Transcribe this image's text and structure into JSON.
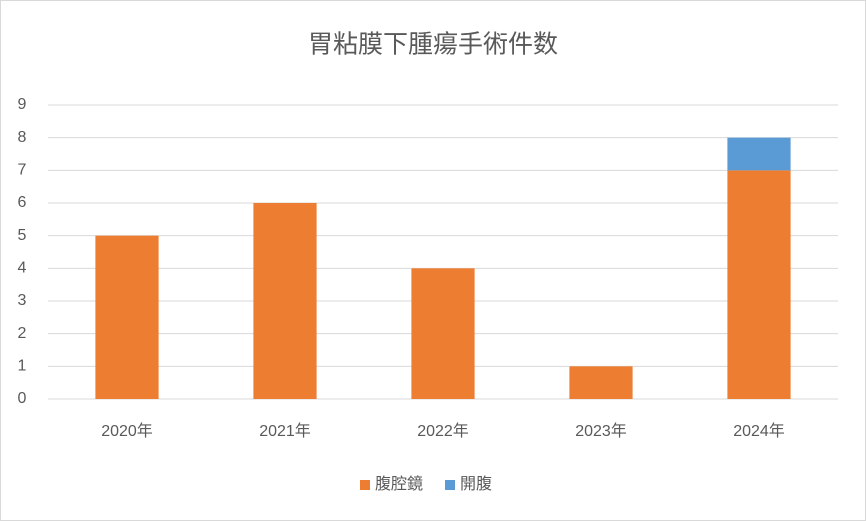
{
  "chart_data": {
    "type": "stacked_bar",
    "title": "胃粘膜下腫瘍手術件数",
    "categories": [
      "2020年",
      "2021年",
      "2022年",
      "2023年",
      "2024年"
    ],
    "series": [
      {
        "name": "腹腔鏡",
        "color": "#ED7D31",
        "values": [
          5,
          6,
          4,
          1,
          7
        ]
      },
      {
        "name": "開腹",
        "color": "#5B9BD5",
        "values": [
          0,
          0,
          0,
          0,
          1
        ]
      }
    ],
    "ylim": [
      0,
      9
    ],
    "yticks": [
      0,
      1,
      2,
      3,
      4,
      5,
      6,
      7,
      8,
      9
    ],
    "grid": true,
    "legend": "bottom"
  }
}
